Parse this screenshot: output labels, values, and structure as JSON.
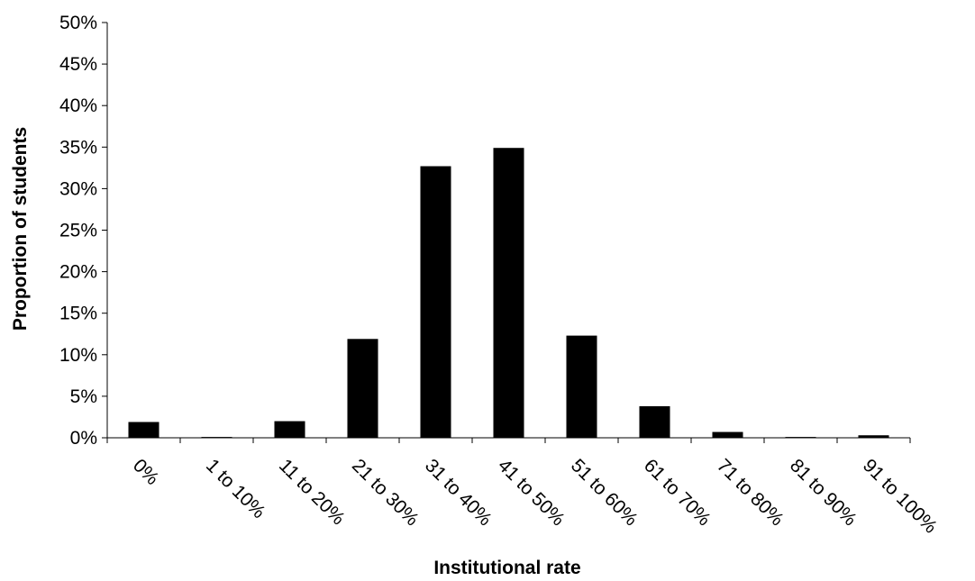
{
  "chart_data": {
    "type": "bar",
    "title": "",
    "xlabel": "Institutional rate",
    "ylabel": "Proportion of students",
    "categories": [
      "0%",
      "1 to 10%",
      "11 to 20%",
      "21 to 30%",
      "31 to 40%",
      "41 to 50%",
      "51 to 60%",
      "61 to 70%",
      "71 to 80%",
      "81 to 90%",
      "91 to 100%"
    ],
    "values": [
      1.9,
      0.1,
      2.0,
      11.9,
      32.7,
      34.9,
      12.3,
      3.8,
      0.7,
      0.1,
      0.3
    ],
    "ylim": [
      0,
      50
    ],
    "yticks": [
      "0%",
      "5%",
      "10%",
      "15%",
      "20%",
      "25%",
      "30%",
      "35%",
      "40%",
      "45%",
      "50%"
    ],
    "grid": false,
    "legend": "none",
    "bar_color": "#000000"
  }
}
